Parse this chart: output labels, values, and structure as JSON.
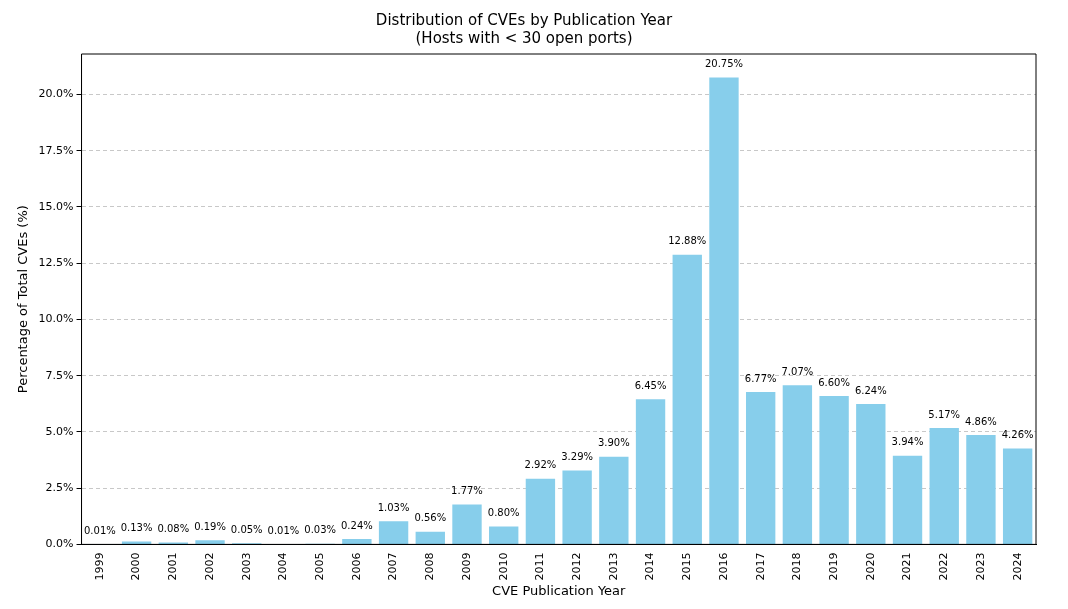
{
  "chart_data": {
    "type": "bar",
    "title": "Distribution of CVEs by Publication Year",
    "subtitle": "(Hosts with < 30 open ports)",
    "xlabel": "CVE Publication Year",
    "ylabel": "Percentage of Total CVEs (%)",
    "categories": [
      "1999",
      "2000",
      "2001",
      "2002",
      "2003",
      "2004",
      "2005",
      "2006",
      "2007",
      "2008",
      "2009",
      "2010",
      "2011",
      "2012",
      "2013",
      "2014",
      "2015",
      "2016",
      "2017",
      "2018",
      "2019",
      "2020",
      "2021",
      "2022",
      "2023",
      "2024"
    ],
    "values": [
      0.01,
      0.13,
      0.08,
      0.19,
      0.05,
      0.01,
      0.03,
      0.24,
      1.03,
      0.56,
      1.77,
      0.8,
      2.92,
      3.29,
      3.9,
      6.45,
      12.88,
      20.75,
      6.77,
      7.07,
      6.6,
      6.24,
      3.94,
      5.17,
      4.86,
      4.26
    ],
    "value_labels": [
      "0.01%",
      "0.13%",
      "0.08%",
      "0.19%",
      "0.05%",
      "0.01%",
      "0.03%",
      "0.24%",
      "1.03%",
      "0.56%",
      "1.77%",
      "0.80%",
      "2.92%",
      "3.29%",
      "3.90%",
      "6.45%",
      "12.88%",
      "20.75%",
      "6.77%",
      "7.07%",
      "6.60%",
      "6.24%",
      "3.94%",
      "5.17%",
      "4.86%",
      "4.26%"
    ],
    "color": "#87ceeb",
    "ylim": [
      0,
      21.8
    ],
    "yticks": [
      {
        "value": 0,
        "label": "0.0%"
      },
      {
        "value": 2.5,
        "label": "2.5%"
      },
      {
        "value": 5,
        "label": "5.0%"
      },
      {
        "value": 7.5,
        "label": "7.5%"
      },
      {
        "value": 10,
        "label": "10.0%"
      },
      {
        "value": 12.5,
        "label": "12.5%"
      },
      {
        "value": 15,
        "label": "15.0%"
      },
      {
        "value": 17.5,
        "label": "17.5%"
      },
      {
        "value": 20,
        "label": "20.0%"
      }
    ],
    "grid": "y",
    "legend": false
  }
}
